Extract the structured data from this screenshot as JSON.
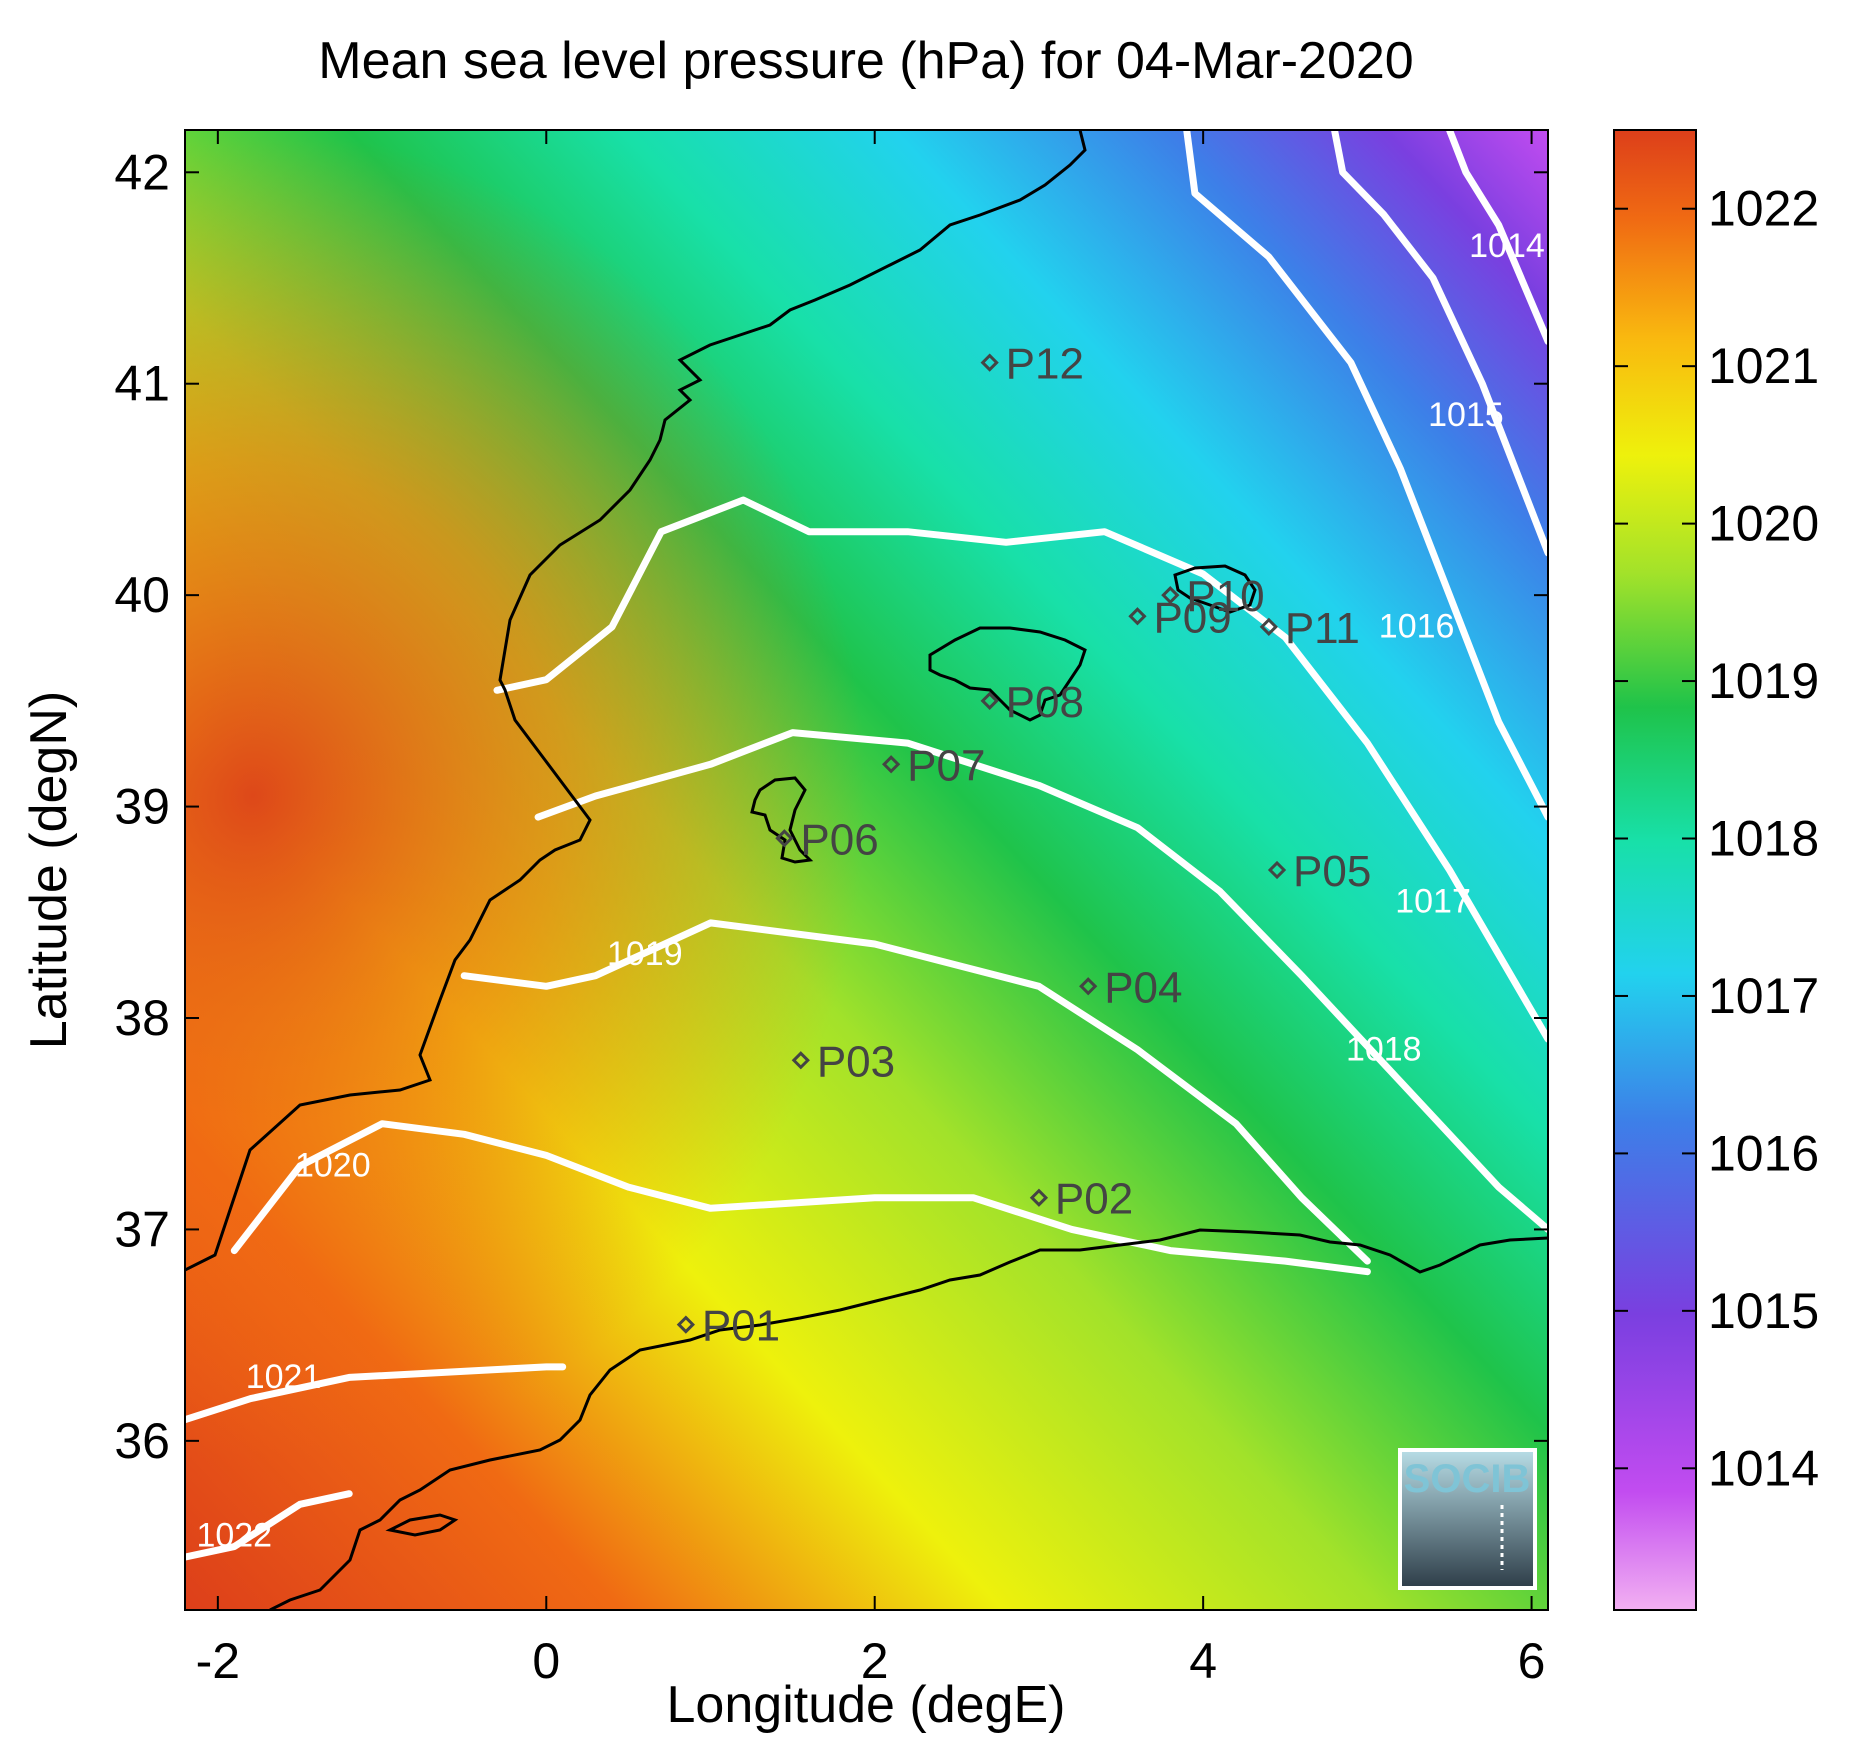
{
  "title": "Mean sea level pressure (hPa) for 04-Mar-2020",
  "xlabel": "Longitude (degE)",
  "ylabel": "Latitude (degN)",
  "xlim": [
    -2.2,
    6.1
  ],
  "ylim": [
    35.2,
    42.2
  ],
  "x_ticks": [
    -2,
    0,
    2,
    4,
    6
  ],
  "y_ticks": [
    36,
    37,
    38,
    39,
    40,
    41,
    42
  ],
  "colorbar": {
    "range": [
      1013.1,
      1022.5
    ],
    "ticks": [
      1014,
      1015,
      1016,
      1017,
      1018,
      1019,
      1020,
      1021,
      1022
    ],
    "colors": [
      "#f2b0f2",
      "#c24cf0",
      "#7a3fe0",
      "#3d7fe8",
      "#22d2ee",
      "#18e0a8",
      "#1fc34a",
      "#a2e22a",
      "#eef10c",
      "#f9b80f",
      "#f06a13",
      "#dd3f1a"
    ]
  },
  "chart_data": {
    "type": "map",
    "variable": "Mean sea level pressure",
    "units": "hPa",
    "date": "04-Mar-2020",
    "stations": [
      {
        "name": "P01",
        "lon": 0.85,
        "lat": 36.55
      },
      {
        "name": "P02",
        "lon": 3.0,
        "lat": 37.15
      },
      {
        "name": "P03",
        "lon": 1.55,
        "lat": 37.8
      },
      {
        "name": "P04",
        "lon": 3.3,
        "lat": 38.15
      },
      {
        "name": "P05",
        "lon": 4.45,
        "lat": 38.7
      },
      {
        "name": "P06",
        "lon": 1.45,
        "lat": 38.85
      },
      {
        "name": "P07",
        "lon": 2.1,
        "lat": 39.2
      },
      {
        "name": "P08",
        "lon": 2.7,
        "lat": 39.5
      },
      {
        "name": "P09",
        "lon": 3.6,
        "lat": 39.9
      },
      {
        "name": "P10",
        "lon": 3.8,
        "lat": 40.0
      },
      {
        "name": "P11",
        "lon": 4.4,
        "lat": 39.85
      },
      {
        "name": "P12",
        "lon": 2.7,
        "lat": 41.1
      }
    ],
    "contours": [
      {
        "level": 1022,
        "label": "1022",
        "points": [
          [
            -2.2,
            35.45
          ],
          [
            -1.9,
            35.5
          ],
          [
            -1.5,
            35.7
          ],
          [
            -1.2,
            35.75
          ]
        ],
        "label_at": [
          -1.9,
          35.5
        ]
      },
      {
        "level": 1021,
        "label": "1021",
        "points": [
          [
            -2.2,
            36.1
          ],
          [
            -1.8,
            36.2
          ],
          [
            -1.2,
            36.3
          ],
          [
            0,
            36.35
          ],
          [
            0.1,
            36.35
          ]
        ],
        "label_at": [
          -1.6,
          36.25
        ]
      },
      {
        "level": 1020,
        "label": "1020",
        "points": [
          [
            -1.9,
            36.9
          ],
          [
            -1.5,
            37.3
          ],
          [
            -1.0,
            37.5
          ],
          [
            -0.5,
            37.45
          ],
          [
            0,
            37.35
          ],
          [
            0.5,
            37.2
          ],
          [
            1.0,
            37.1
          ],
          [
            2.0,
            37.15
          ],
          [
            2.6,
            37.15
          ],
          [
            3.2,
            37.0
          ],
          [
            3.8,
            36.9
          ],
          [
            4.5,
            36.85
          ],
          [
            5.0,
            36.8
          ]
        ],
        "label_at": [
          -1.3,
          37.25
        ]
      },
      {
        "level": 1019,
        "label": "1019",
        "points": [
          [
            -0.5,
            38.2
          ],
          [
            0,
            38.15
          ],
          [
            0.3,
            38.2
          ],
          [
            1.0,
            38.45
          ],
          [
            2.0,
            38.35
          ],
          [
            3.0,
            38.15
          ],
          [
            3.6,
            37.85
          ],
          [
            4.2,
            37.5
          ],
          [
            4.6,
            37.15
          ],
          [
            5.0,
            36.85
          ]
        ],
        "label_at": [
          0.6,
          38.25
        ]
      },
      {
        "level": 1018,
        "label": "1018",
        "points": [
          [
            -0.05,
            38.95
          ],
          [
            0.3,
            39.05
          ],
          [
            1.0,
            39.2
          ],
          [
            1.5,
            39.35
          ],
          [
            2.2,
            39.3
          ],
          [
            3.0,
            39.1
          ],
          [
            3.6,
            38.9
          ],
          [
            4.1,
            38.6
          ],
          [
            4.6,
            38.2
          ],
          [
            5.2,
            37.7
          ],
          [
            5.8,
            37.2
          ],
          [
            6.1,
            37.0
          ]
        ],
        "label_at": [
          5.1,
          37.8
        ]
      },
      {
        "level": 1017,
        "label": "1017",
        "points": [
          [
            -0.3,
            39.55
          ],
          [
            0,
            39.6
          ],
          [
            0.4,
            39.85
          ],
          [
            0.7,
            40.3
          ],
          [
            1.2,
            40.45
          ],
          [
            1.6,
            40.3
          ],
          [
            2.2,
            40.3
          ],
          [
            2.8,
            40.25
          ],
          [
            3.4,
            40.3
          ],
          [
            4.0,
            40.1
          ],
          [
            4.5,
            39.8
          ],
          [
            5.0,
            39.3
          ],
          [
            5.5,
            38.7
          ],
          [
            6.1,
            37.9
          ]
        ],
        "label_at": [
          5.4,
          38.5
        ]
      },
      {
        "level": 1016,
        "label": "1016",
        "points": [
          [
            3.9,
            42.2
          ],
          [
            3.95,
            41.9
          ],
          [
            4.4,
            41.6
          ],
          [
            4.9,
            41.1
          ],
          [
            5.2,
            40.6
          ],
          [
            5.5,
            40.0
          ],
          [
            5.8,
            39.4
          ],
          [
            6.1,
            38.95
          ]
        ],
        "label_at": [
          5.3,
          39.8
        ]
      },
      {
        "level": 1015,
        "label": "1015",
        "points": [
          [
            4.8,
            42.2
          ],
          [
            4.85,
            42.0
          ],
          [
            5.1,
            41.8
          ],
          [
            5.4,
            41.5
          ],
          [
            5.7,
            41.0
          ],
          [
            6.1,
            40.2
          ]
        ],
        "label_at": [
          5.6,
          40.8
        ]
      },
      {
        "level": 1014,
        "label": "1014",
        "points": [
          [
            5.5,
            42.2
          ],
          [
            5.6,
            42.0
          ],
          [
            5.8,
            41.75
          ],
          [
            6.1,
            41.2
          ]
        ],
        "label_at": [
          5.85,
          41.6
        ]
      }
    ]
  }
}
